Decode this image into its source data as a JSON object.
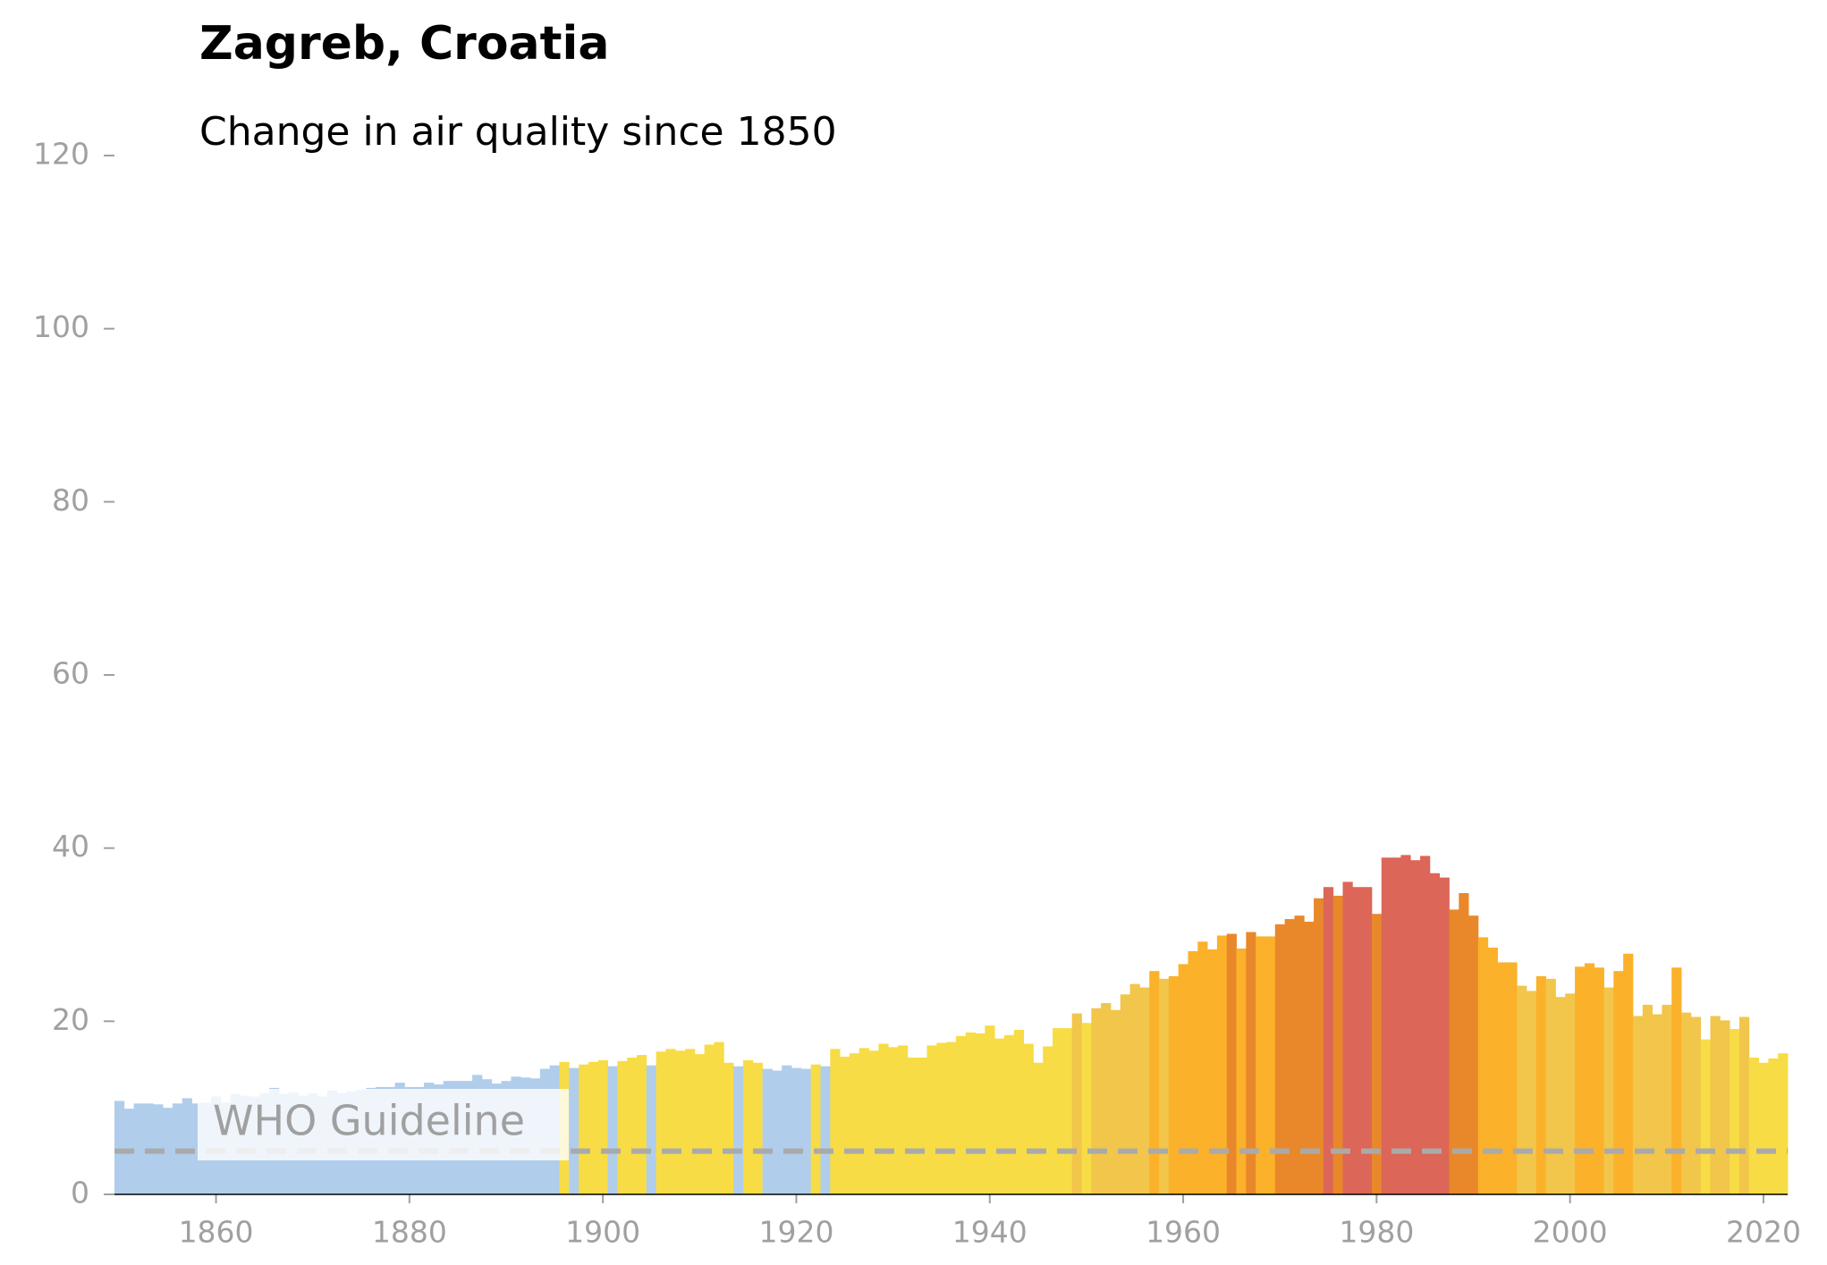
{
  "chart_data": {
    "type": "bar",
    "title": "Zagreb, Croatia",
    "subtitle": "Change in air quality since 1850",
    "x": [
      1850,
      1851,
      1852,
      1853,
      1854,
      1855,
      1856,
      1857,
      1858,
      1859,
      1860,
      1861,
      1862,
      1863,
      1864,
      1865,
      1866,
      1867,
      1868,
      1869,
      1870,
      1871,
      1872,
      1873,
      1874,
      1875,
      1876,
      1877,
      1878,
      1879,
      1880,
      1881,
      1882,
      1883,
      1884,
      1885,
      1886,
      1887,
      1888,
      1889,
      1890,
      1891,
      1892,
      1893,
      1894,
      1895,
      1896,
      1897,
      1898,
      1899,
      1900,
      1901,
      1902,
      1903,
      1904,
      1905,
      1906,
      1907,
      1908,
      1909,
      1910,
      1911,
      1912,
      1913,
      1914,
      1915,
      1916,
      1917,
      1918,
      1919,
      1920,
      1921,
      1922,
      1923,
      1924,
      1925,
      1926,
      1927,
      1928,
      1929,
      1930,
      1931,
      1932,
      1933,
      1934,
      1935,
      1936,
      1937,
      1938,
      1939,
      1940,
      1941,
      1942,
      1943,
      1944,
      1945,
      1946,
      1947,
      1948,
      1949,
      1950,
      1951,
      1952,
      1953,
      1954,
      1955,
      1956,
      1957,
      1958,
      1959,
      1960,
      1961,
      1962,
      1963,
      1964,
      1965,
      1966,
      1967,
      1968,
      1969,
      1970,
      1971,
      1972,
      1973,
      1974,
      1975,
      1976,
      1977,
      1978,
      1979,
      1980,
      1981,
      1982,
      1983,
      1984,
      1985,
      1986,
      1987,
      1988,
      1989,
      1990,
      1991,
      1992,
      1993,
      1994,
      1995,
      1996,
      1997,
      1998,
      1999,
      2000,
      2001,
      2002,
      2003,
      2004,
      2005,
      2006,
      2007,
      2008,
      2009,
      2010,
      2011,
      2012,
      2013,
      2014,
      2015,
      2016,
      2017,
      2018,
      2019,
      2020,
      2021,
      2022
    ],
    "values": [
      10.8,
      9.9,
      10.5,
      10.5,
      10.4,
      10.0,
      10.5,
      11.1,
      10.5,
      10.6,
      11.3,
      10.6,
      11.6,
      11.4,
      11.3,
      11.7,
      12.3,
      11.6,
      11.8,
      11.4,
      11.7,
      11.3,
      12.0,
      11.7,
      11.9,
      12.1,
      12.3,
      12.4,
      12.4,
      12.9,
      12.4,
      12.4,
      12.9,
      12.7,
      13.1,
      13.1,
      13.1,
      13.8,
      13.3,
      12.8,
      13.1,
      13.6,
      13.5,
      13.4,
      14.5,
      14.9,
      15.3,
      14.6,
      15.0,
      15.3,
      15.5,
      14.8,
      15.4,
      15.8,
      16.1,
      14.9,
      16.5,
      16.8,
      16.6,
      16.8,
      16.2,
      17.3,
      17.6,
      15.2,
      14.8,
      15.5,
      15.2,
      14.5,
      14.3,
      14.9,
      14.6,
      14.5,
      15.0,
      14.8,
      16.8,
      15.9,
      16.3,
      16.9,
      16.6,
      17.4,
      17.0,
      17.2,
      15.8,
      15.8,
      17.2,
      17.5,
      17.6,
      18.3,
      18.7,
      18.6,
      19.5,
      18.0,
      18.4,
      19.0,
      17.4,
      15.2,
      17.1,
      19.2,
      19.2,
      20.9,
      19.8,
      21.5,
      22.1,
      21.3,
      23.1,
      24.3,
      23.9,
      25.8,
      24.9,
      25.2,
      26.6,
      28.1,
      29.2,
      28.3,
      29.9,
      30.1,
      28.4,
      30.3,
      29.8,
      29.8,
      31.2,
      31.8,
      32.2,
      31.5,
      34.2,
      35.5,
      34.5,
      36.1,
      35.5,
      35.5,
      32.4,
      38.9,
      38.9,
      39.2,
      38.6,
      39.1,
      37.1,
      36.6,
      32.9,
      34.8,
      32.2,
      29.7,
      28.5,
      26.8,
      26.8,
      24.1,
      23.5,
      25.2,
      24.9,
      22.8,
      23.2,
      26.3,
      26.7,
      26.2,
      23.9,
      25.8,
      27.8,
      20.6,
      21.9,
      20.8,
      21.9,
      26.2,
      21.0,
      20.5,
      17.9,
      20.6,
      20.1,
      19.1,
      20.5,
      15.8,
      15.2,
      15.7,
      16.3
    ],
    "colors": [
      "#b0cdeb",
      "#b0cdeb",
      "#b0cdeb",
      "#b0cdeb",
      "#b0cdeb",
      "#b0cdeb",
      "#b0cdeb",
      "#b0cdeb",
      "#b0cdeb",
      "#b0cdeb",
      "#b0cdeb",
      "#b0cdeb",
      "#b0cdeb",
      "#b0cdeb",
      "#b0cdeb",
      "#b0cdeb",
      "#b0cdeb",
      "#b0cdeb",
      "#b0cdeb",
      "#b0cdeb",
      "#b0cdeb",
      "#b0cdeb",
      "#b0cdeb",
      "#b0cdeb",
      "#b0cdeb",
      "#b0cdeb",
      "#b0cdeb",
      "#b0cdeb",
      "#b0cdeb",
      "#b0cdeb",
      "#b0cdeb",
      "#b0cdeb",
      "#b0cdeb",
      "#b0cdeb",
      "#b0cdeb",
      "#b0cdeb",
      "#b0cdeb",
      "#b0cdeb",
      "#b0cdeb",
      "#b0cdeb",
      "#b0cdeb",
      "#b0cdeb",
      "#b0cdeb",
      "#b0cdeb",
      "#b0cdeb",
      "#b0cdeb",
      "#f7dc45",
      "#b0cdeb",
      "#f7dc45",
      "#f7dc45",
      "#f7dc45",
      "#b0cdeb",
      "#f7dc45",
      "#f7dc45",
      "#f7dc45",
      "#b0cdeb",
      "#f7dc45",
      "#f7dc45",
      "#f7dc45",
      "#f7dc45",
      "#f7dc45",
      "#f7dc45",
      "#f7dc45",
      "#f7dc45",
      "#b0cdeb",
      "#f7dc45",
      "#f7dc45",
      "#b0cdeb",
      "#b0cdeb",
      "#b0cdeb",
      "#b0cdeb",
      "#b0cdeb",
      "#f7dc45",
      "#b0cdeb",
      "#f7dc45",
      "#f7dc45",
      "#f7dc45",
      "#f7dc45",
      "#f7dc45",
      "#f7dc45",
      "#f7dc45",
      "#f7dc45",
      "#f7dc45",
      "#f7dc45",
      "#f7dc45",
      "#f7dc45",
      "#f7dc45",
      "#f7dc45",
      "#f7dc45",
      "#f7dc45",
      "#f7dc45",
      "#f7dc45",
      "#f7dc45",
      "#f7dc45",
      "#f7dc45",
      "#f7dc45",
      "#f7dc45",
      "#f7dc45",
      "#f7dc45",
      "#f2c54b",
      "#f7dc45",
      "#f2c54b",
      "#f2c54b",
      "#f2c54b",
      "#f2c54b",
      "#f2c54b",
      "#f2c54b",
      "#fbb12a",
      "#f2c54b",
      "#fbb12a",
      "#fbb12a",
      "#fbb12a",
      "#fbb12a",
      "#fbb12a",
      "#fbb12a",
      "#e8882a",
      "#fbb12a",
      "#e8882a",
      "#fbb12a",
      "#fbb12a",
      "#e8882a",
      "#e8882a",
      "#e8882a",
      "#e8882a",
      "#e8882a",
      "#dc6657",
      "#e8882a",
      "#dc6657",
      "#dc6657",
      "#dc6657",
      "#e8882a",
      "#dc6657",
      "#dc6657",
      "#dc6657",
      "#dc6657",
      "#dc6657",
      "#dc6657",
      "#dc6657",
      "#e8882a",
      "#e8882a",
      "#e8882a",
      "#fbb12a",
      "#fbb12a",
      "#fbb12a",
      "#fbb12a",
      "#f2c54b",
      "#f2c54b",
      "#fbb12a",
      "#f2c54b",
      "#f2c54b",
      "#f2c54b",
      "#fbb12a",
      "#fbb12a",
      "#fbb12a",
      "#f2c54b",
      "#fbb12a",
      "#fbb12a",
      "#f2c54b",
      "#f2c54b",
      "#f2c54b",
      "#f2c54b",
      "#fbb12a",
      "#f2c54b",
      "#f2c54b",
      "#f7dc45",
      "#f2c54b",
      "#f2c54b",
      "#f7dc45",
      "#f2c54b",
      "#f7dc45",
      "#f7dc45",
      "#f7dc45",
      "#f7dc45"
    ],
    "xlim": [
      1849.5,
      2022.5
    ],
    "xticks": [
      1860,
      1880,
      1900,
      1920,
      1940,
      1960,
      1980,
      2000,
      2020
    ],
    "ylim": [
      0,
      120
    ],
    "yticks": [
      0,
      20,
      40,
      60,
      80,
      100,
      120
    ],
    "annotations": [
      {
        "text": "WHO Guideline",
        "value": 5
      }
    ]
  }
}
